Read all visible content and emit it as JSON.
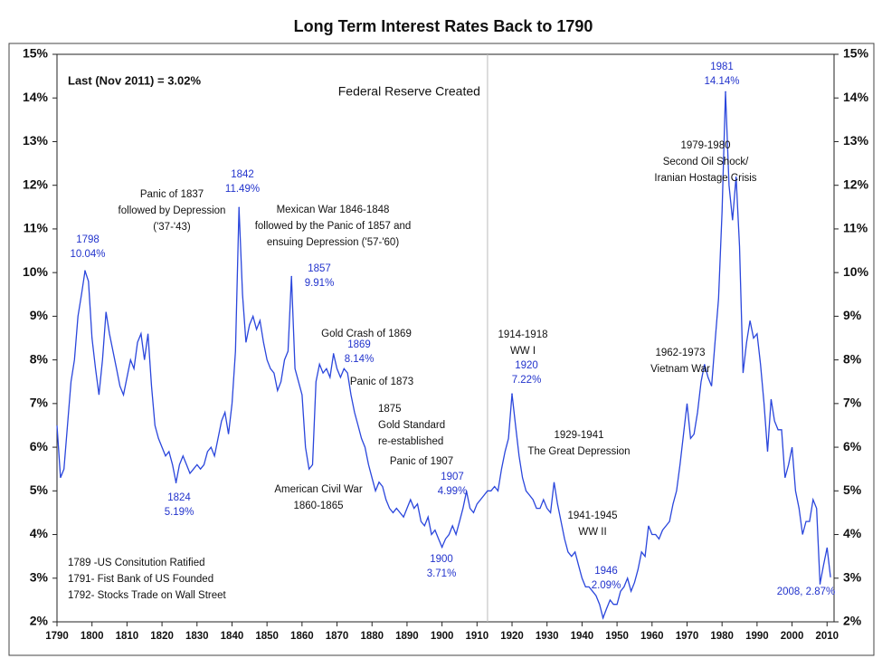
{
  "chart_data": {
    "type": "line",
    "title": "Long Term Interest Rates Back to 1790",
    "color": "#2a46dc",
    "xlim": [
      1790,
      2012
    ],
    "ylim": [
      2,
      15
    ],
    "xticks": [
      1790,
      1800,
      1810,
      1820,
      1830,
      1840,
      1850,
      1860,
      1870,
      1880,
      1890,
      1900,
      1910,
      1920,
      1930,
      1940,
      1950,
      1960,
      1970,
      1980,
      1990,
      2000,
      2010
    ],
    "yticks": [
      {
        "value": 2,
        "label": "2%"
      },
      {
        "value": 3,
        "label": "3%"
      },
      {
        "value": 4,
        "label": "4%"
      },
      {
        "value": 5,
        "label": "5%"
      },
      {
        "value": 6,
        "label": "6%"
      },
      {
        "value": 7,
        "label": "7%"
      },
      {
        "value": 8,
        "label": "8%"
      },
      {
        "value": 9,
        "label": "9%"
      },
      {
        "value": 10,
        "label": "10%"
      },
      {
        "value": 11,
        "label": "11%"
      },
      {
        "value": 12,
        "label": "12%"
      },
      {
        "value": 13,
        "label": "13%"
      },
      {
        "value": 14,
        "label": "14%"
      },
      {
        "value": 15,
        "label": "15%"
      }
    ],
    "x": [
      1790,
      1791,
      1792,
      1793,
      1794,
      1795,
      1796,
      1797,
      1798,
      1799,
      1800,
      1801,
      1802,
      1803,
      1804,
      1805,
      1806,
      1807,
      1808,
      1809,
      1810,
      1811,
      1812,
      1813,
      1814,
      1815,
      1816,
      1817,
      1818,
      1819,
      1820,
      1821,
      1822,
      1823,
      1824,
      1825,
      1826,
      1827,
      1828,
      1829,
      1830,
      1831,
      1832,
      1833,
      1834,
      1835,
      1836,
      1837,
      1838,
      1839,
      1840,
      1841,
      1842,
      1843,
      1844,
      1845,
      1846,
      1847,
      1848,
      1849,
      1850,
      1851,
      1852,
      1853,
      1854,
      1855,
      1856,
      1857,
      1858,
      1859,
      1860,
      1861,
      1862,
      1863,
      1864,
      1865,
      1866,
      1867,
      1868,
      1869,
      1870,
      1871,
      1872,
      1873,
      1874,
      1875,
      1876,
      1877,
      1878,
      1879,
      1880,
      1881,
      1882,
      1883,
      1884,
      1885,
      1886,
      1887,
      1888,
      1889,
      1890,
      1891,
      1892,
      1893,
      1894,
      1895,
      1896,
      1897,
      1898,
      1899,
      1900,
      1901,
      1902,
      1903,
      1904,
      1905,
      1906,
      1907,
      1908,
      1909,
      1910,
      1911,
      1912,
      1913,
      1914,
      1915,
      1916,
      1917,
      1918,
      1919,
      1920,
      1921,
      1922,
      1923,
      1924,
      1925,
      1926,
      1927,
      1928,
      1929,
      1930,
      1931,
      1932,
      1933,
      1934,
      1935,
      1936,
      1937,
      1938,
      1939,
      1940,
      1941,
      1942,
      1943,
      1944,
      1945,
      1946,
      1947,
      1948,
      1949,
      1950,
      1951,
      1952,
      1953,
      1954,
      1955,
      1956,
      1957,
      1958,
      1959,
      1960,
      1961,
      1962,
      1963,
      1964,
      1965,
      1966,
      1967,
      1968,
      1969,
      1970,
      1971,
      1972,
      1973,
      1974,
      1975,
      1976,
      1977,
      1978,
      1979,
      1980,
      1981,
      1982,
      1983,
      1984,
      1985,
      1986,
      1987,
      1988,
      1989,
      1990,
      1991,
      1992,
      1993,
      1994,
      1995,
      1996,
      1997,
      1998,
      1999,
      2000,
      2001,
      2002,
      2003,
      2004,
      2005,
      2006,
      2007,
      2008,
      2009,
      2010,
      2011
    ],
    "values": [
      6.5,
      5.3,
      5.5,
      6.5,
      7.5,
      8.0,
      9.0,
      9.5,
      10.04,
      9.8,
      8.5,
      7.8,
      7.2,
      8.0,
      9.1,
      8.6,
      8.2,
      7.8,
      7.4,
      7.2,
      7.6,
      8.0,
      7.8,
      8.4,
      8.6,
      8.0,
      8.6,
      7.4,
      6.5,
      6.2,
      6.0,
      5.8,
      5.9,
      5.6,
      5.19,
      5.6,
      5.8,
      5.6,
      5.4,
      5.5,
      5.6,
      5.5,
      5.6,
      5.9,
      6.0,
      5.8,
      6.2,
      6.6,
      6.8,
      6.3,
      7.0,
      8.2,
      11.49,
      9.5,
      8.4,
      8.8,
      9.0,
      8.7,
      8.9,
      8.4,
      8.0,
      7.8,
      7.7,
      7.3,
      7.5,
      8.0,
      8.2,
      9.91,
      7.8,
      7.5,
      7.2,
      6.0,
      5.5,
      5.6,
      7.5,
      7.9,
      7.7,
      7.8,
      7.6,
      8.14,
      7.8,
      7.6,
      7.8,
      7.7,
      7.2,
      6.8,
      6.5,
      6.2,
      6.0,
      5.6,
      5.3,
      5.0,
      5.2,
      5.1,
      4.8,
      4.6,
      4.5,
      4.6,
      4.5,
      4.4,
      4.6,
      4.8,
      4.6,
      4.7,
      4.3,
      4.2,
      4.4,
      4.0,
      4.1,
      3.9,
      3.71,
      3.9,
      4.0,
      4.2,
      4.0,
      4.3,
      4.6,
      4.99,
      4.6,
      4.5,
      4.7,
      4.8,
      4.9,
      5.0,
      5.0,
      5.1,
      5.0,
      5.5,
      5.9,
      6.2,
      7.22,
      6.5,
      5.8,
      5.3,
      5.0,
      4.9,
      4.8,
      4.6,
      4.6,
      4.8,
      4.6,
      4.5,
      5.2,
      4.7,
      4.3,
      3.9,
      3.6,
      3.5,
      3.6,
      3.3,
      3.0,
      2.8,
      2.8,
      2.7,
      2.6,
      2.4,
      2.09,
      2.3,
      2.5,
      2.4,
      2.4,
      2.7,
      2.8,
      3.0,
      2.7,
      2.9,
      3.2,
      3.6,
      3.5,
      4.2,
      4.0,
      4.0,
      3.9,
      4.1,
      4.2,
      4.3,
      4.7,
      5.0,
      5.6,
      6.3,
      7.0,
      6.2,
      6.3,
      6.8,
      7.5,
      7.9,
      7.6,
      7.4,
      8.4,
      9.4,
      11.4,
      14.14,
      12.0,
      11.2,
      12.2,
      10.6,
      7.7,
      8.4,
      8.9,
      8.5,
      8.6,
      7.9,
      7.0,
      5.9,
      7.1,
      6.6,
      6.4,
      6.4,
      5.3,
      5.6,
      6.0,
      5.0,
      4.6,
      4.0,
      4.3,
      4.3,
      4.8,
      4.6,
      2.87,
      3.3,
      3.7,
      3.02
    ],
    "reference_line": {
      "x": 1913,
      "label": "Federal Reserve Created"
    },
    "last_label": "Last (Nov 2011) = 3.02%",
    "annotations": [
      [
        "Panic of 1837",
        "followed by Depression",
        "('37-'43)"
      ],
      [
        "Mexican War 1846-1848",
        "followed by the Panic of 1857 and",
        "ensuing Depression ('57-'60)"
      ],
      [
        "Gold Crash of 1869"
      ],
      [
        "Panic of 1873"
      ],
      [
        "1875",
        "Gold Standard",
        "re-established"
      ],
      [
        "Panic of 1907"
      ],
      [
        "American Civil War",
        "1860-1865"
      ],
      [
        "1914-1918",
        "WW I"
      ],
      [
        "1929-1941",
        "The Great Depression"
      ],
      [
        "1941-1945",
        "WW II"
      ],
      [
        "1979-1980",
        "Second Oil Shock/",
        "Iranian Hostage Crisis"
      ],
      [
        "1962-1973",
        "Vietnam War"
      ],
      [
        "1789 -US Consitution Ratified",
        "1791- Fist Bank of US Founded",
        "1792- Stocks Trade on Wall Street"
      ]
    ],
    "peak_labels": [
      {
        "x": 1798,
        "y": 10.04,
        "lines": [
          "1798",
          "10.04%"
        ]
      },
      {
        "x": 1824,
        "y": 5.19,
        "lines": [
          "1824",
          "5.19%"
        ]
      },
      {
        "x": 1842,
        "y": 11.49,
        "lines": [
          "1842",
          "11.49%"
        ]
      },
      {
        "x": 1857,
        "y": 9.91,
        "lines": [
          "1857",
          "9.91%"
        ]
      },
      {
        "x": 1869,
        "y": 8.14,
        "lines": [
          "1869",
          "8.14%"
        ]
      },
      {
        "x": 1907,
        "y": 4.99,
        "lines": [
          "1907",
          "4.99%"
        ]
      },
      {
        "x": 1900,
        "y": 3.71,
        "lines": [
          "1900",
          "3.71%"
        ]
      },
      {
        "x": 1920,
        "y": 7.22,
        "lines": [
          "1914-1918",
          "1920",
          "7.22%"
        ]
      },
      {
        "x": 1946,
        "y": 2.09,
        "lines": [
          "1946",
          "2.09%"
        ]
      },
      {
        "x": 1981,
        "y": 14.14,
        "lines": [
          "1981",
          "14.14%"
        ]
      },
      {
        "x": 2008,
        "y": 2.87,
        "lines": [
          "2008, 2.87%"
        ]
      }
    ]
  }
}
